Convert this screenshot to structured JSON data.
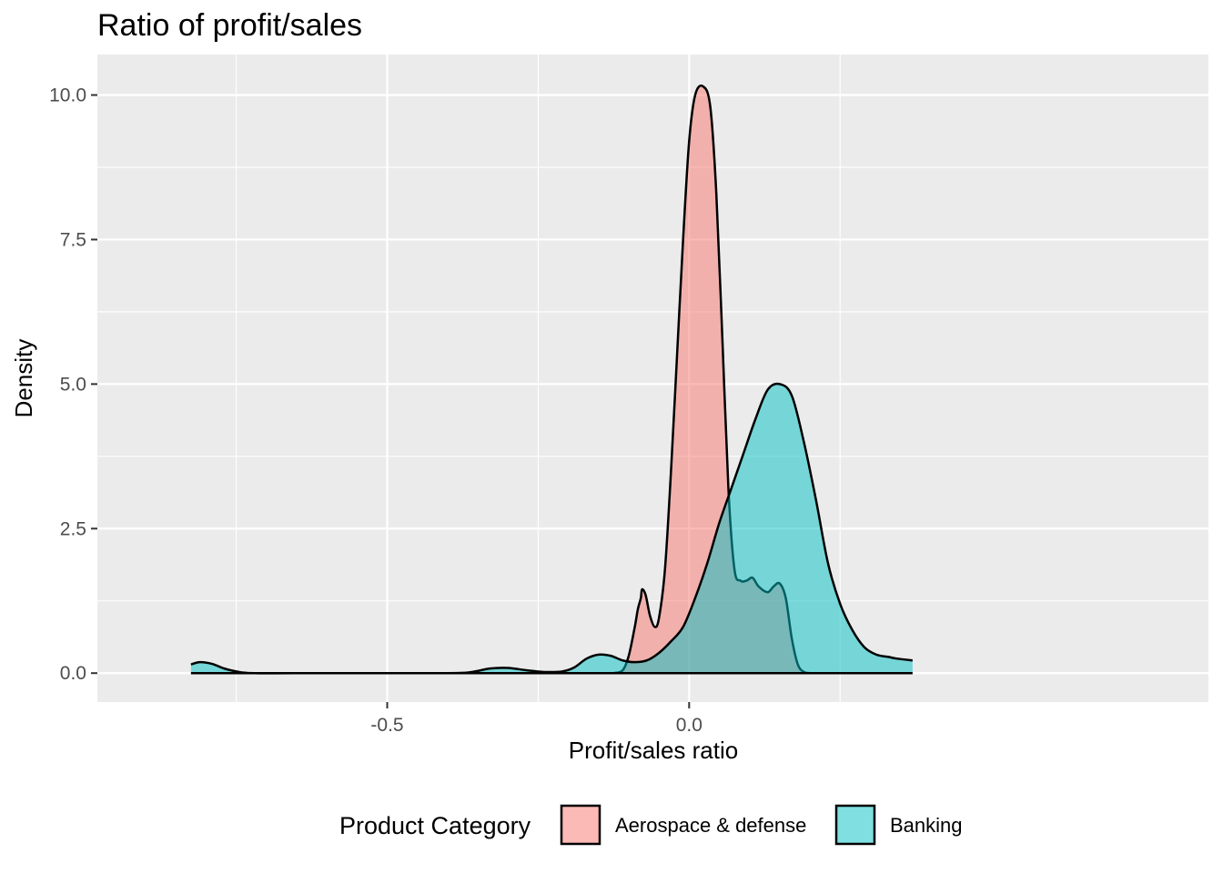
{
  "chart_data": {
    "type": "area",
    "title": "Ratio of profit/sales",
    "xlabel": "Profit/sales ratio",
    "ylabel": "Density",
    "xlim": [
      -0.98,
      0.86
    ],
    "ylim": [
      -0.5,
      10.7
    ],
    "x_ticks": [
      -0.5,
      0.0
    ],
    "x_tick_labels": [
      "-0.5",
      "0.0"
    ],
    "x_minor_gridlines": [
      -0.75,
      -0.25,
      0.25
    ],
    "y_ticks": [
      0,
      2.5,
      5,
      7.5,
      10
    ],
    "y_tick_labels": [
      "0.0",
      "2.5",
      "5.0",
      "7.5",
      "10.0"
    ],
    "y_minor_gridlines": [
      1.25,
      3.75,
      6.25,
      8.75
    ],
    "grid": true,
    "legend": {
      "title": "Product Category",
      "position": "bottom",
      "entries": [
        "Aerospace & defense",
        "Banking"
      ]
    },
    "series": [
      {
        "name": "Aerospace & defense",
        "color": "#F8766D",
        "points": [
          [
            -0.125,
            0.0
          ],
          [
            -0.11,
            0.05
          ],
          [
            -0.1,
            0.3
          ],
          [
            -0.09,
            0.8
          ],
          [
            -0.08,
            1.3
          ],
          [
            -0.085,
            1.1
          ],
          [
            -0.078,
            1.45
          ],
          [
            -0.072,
            1.35
          ],
          [
            -0.065,
            1.0
          ],
          [
            -0.057,
            0.8
          ],
          [
            -0.05,
            0.95
          ],
          [
            -0.04,
            1.8
          ],
          [
            -0.03,
            3.5
          ],
          [
            -0.02,
            5.5
          ],
          [
            -0.01,
            7.5
          ],
          [
            0.0,
            9.2
          ],
          [
            0.01,
            10.0
          ],
          [
            0.023,
            10.15
          ],
          [
            0.035,
            9.8
          ],
          [
            0.045,
            8.3
          ],
          [
            0.055,
            5.8
          ],
          [
            0.065,
            3.2
          ],
          [
            0.075,
            1.8
          ],
          [
            0.085,
            1.6
          ],
          [
            0.095,
            1.6
          ],
          [
            0.105,
            1.65
          ],
          [
            0.115,
            1.5
          ],
          [
            0.13,
            1.4
          ],
          [
            0.14,
            1.5
          ],
          [
            0.15,
            1.55
          ],
          [
            0.16,
            1.3
          ],
          [
            0.17,
            0.6
          ],
          [
            0.18,
            0.15
          ],
          [
            0.19,
            0.02
          ],
          [
            0.2,
            0.0
          ]
        ]
      },
      {
        "name": "Banking",
        "color": "#00BFC4",
        "points": [
          [
            -0.825,
            0.15
          ],
          [
            -0.81,
            0.19
          ],
          [
            -0.79,
            0.16
          ],
          [
            -0.77,
            0.08
          ],
          [
            -0.75,
            0.03
          ],
          [
            -0.72,
            0.0
          ],
          [
            -0.6,
            0.0
          ],
          [
            -0.4,
            0.0
          ],
          [
            -0.36,
            0.02
          ],
          [
            -0.33,
            0.08
          ],
          [
            -0.3,
            0.09
          ],
          [
            -0.27,
            0.05
          ],
          [
            -0.24,
            0.02
          ],
          [
            -0.21,
            0.03
          ],
          [
            -0.19,
            0.1
          ],
          [
            -0.17,
            0.25
          ],
          [
            -0.15,
            0.32
          ],
          [
            -0.13,
            0.3
          ],
          [
            -0.11,
            0.22
          ],
          [
            -0.09,
            0.19
          ],
          [
            -0.07,
            0.22
          ],
          [
            -0.05,
            0.35
          ],
          [
            -0.03,
            0.55
          ],
          [
            -0.01,
            0.8
          ],
          [
            0.01,
            1.3
          ],
          [
            0.03,
            1.9
          ],
          [
            0.05,
            2.6
          ],
          [
            0.07,
            3.2
          ],
          [
            0.09,
            3.8
          ],
          [
            0.11,
            4.4
          ],
          [
            0.13,
            4.9
          ],
          [
            0.15,
            5.0
          ],
          [
            0.17,
            4.8
          ],
          [
            0.19,
            4.0
          ],
          [
            0.21,
            3.0
          ],
          [
            0.23,
            1.9
          ],
          [
            0.25,
            1.2
          ],
          [
            0.27,
            0.75
          ],
          [
            0.29,
            0.45
          ],
          [
            0.31,
            0.32
          ],
          [
            0.33,
            0.28
          ],
          [
            0.345,
            0.25
          ],
          [
            0.37,
            0.22
          ]
        ]
      }
    ]
  }
}
